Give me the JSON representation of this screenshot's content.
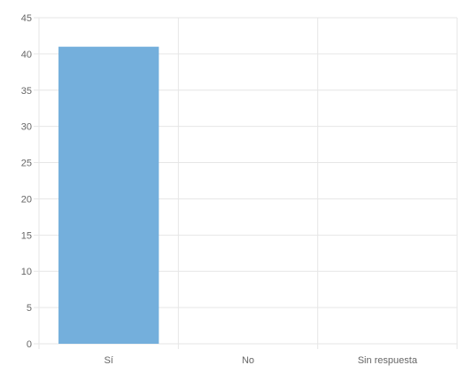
{
  "chart_data": {
    "type": "bar",
    "title": "",
    "xlabel": "",
    "ylabel": "",
    "categories": [
      "Sí",
      "No",
      "Sin respuesta"
    ],
    "values": [
      41,
      0,
      0
    ],
    "ylim": [
      0,
      45
    ],
    "yticks": [
      0,
      5,
      10,
      15,
      20,
      25,
      30,
      35,
      40,
      45
    ],
    "grid": true,
    "legend": "none",
    "colors": {
      "bar": "#74afdc",
      "grid": "#e6e6e6",
      "axis_text": "#666666"
    }
  }
}
